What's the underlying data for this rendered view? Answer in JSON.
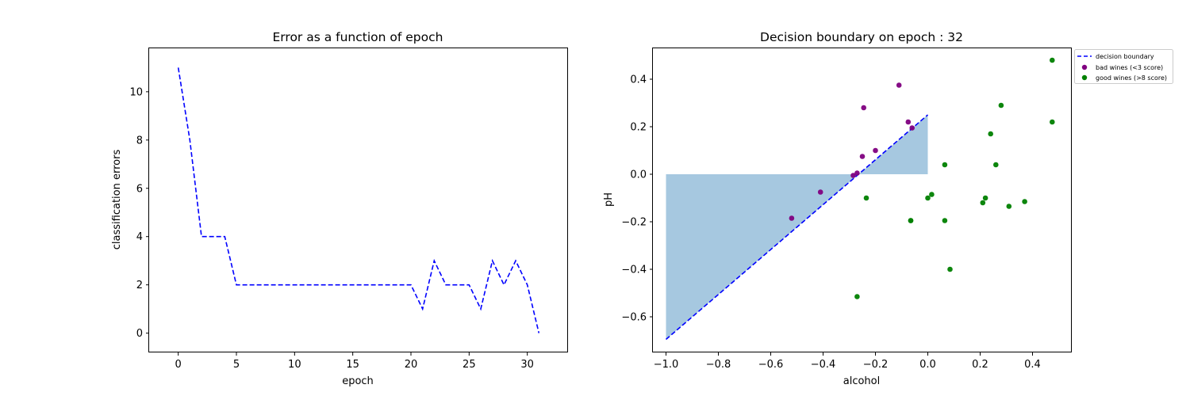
{
  "chart_data": [
    {
      "type": "line",
      "title": "Error as a function of epoch",
      "xlabel": "epoch",
      "ylabel": "classification errors",
      "xlim": [
        -2.5,
        33.5
      ],
      "ylim": [
        -0.8,
        11.8
      ],
      "xticks": [
        0,
        5,
        10,
        15,
        20,
        25,
        30
      ],
      "xtick_labels": [
        "0",
        "5",
        "10",
        "15",
        "20",
        "25",
        "30"
      ],
      "yticks": [
        0,
        2,
        4,
        6,
        8,
        10
      ],
      "ytick_labels": [
        "0",
        "2",
        "4",
        "6",
        "8",
        "10"
      ],
      "grid": false,
      "line_style": "dashed",
      "line_color": "#0000ff",
      "x": [
        0,
        1,
        2,
        3,
        4,
        5,
        6,
        7,
        8,
        9,
        10,
        11,
        12,
        13,
        14,
        15,
        16,
        17,
        18,
        19,
        20,
        21,
        22,
        23,
        24,
        25,
        26,
        27,
        28,
        29,
        30,
        31
      ],
      "y": [
        11,
        8,
        4,
        4,
        4,
        2,
        2,
        2,
        2,
        2,
        2,
        2,
        2,
        2,
        2,
        2,
        2,
        2,
        2,
        2,
        2,
        1,
        3,
        2,
        2,
        2,
        1,
        3,
        2,
        3,
        2,
        0
      ]
    },
    {
      "type": "scatter",
      "title": "Decision boundary on epoch : 32",
      "xlabel": "alcohol",
      "ylabel": "pH",
      "xlim": [
        -1.05,
        0.55
      ],
      "ylim": [
        -0.75,
        0.53
      ],
      "xticks": [
        -1.0,
        -0.8,
        -0.6,
        -0.4,
        -0.2,
        0.0,
        0.2,
        0.4
      ],
      "xtick_labels": [
        "−1.0",
        "−0.8",
        "−0.6",
        "−0.4",
        "−0.2",
        "0.0",
        "0.2",
        "0.4"
      ],
      "yticks": [
        -0.6,
        -0.4,
        -0.2,
        0.0,
        0.2,
        0.4
      ],
      "ytick_labels": [
        "−0.6",
        "−0.4",
        "−0.2",
        "0.0",
        "0.2",
        "0.4"
      ],
      "grid": false,
      "legend_position": "outside-top-right",
      "boundary": {
        "name": "decision boundary",
        "x": [
          -1.0,
          0.0
        ],
        "y": [
          -0.695,
          0.25
        ],
        "color": "#0000ff",
        "style": "dashed"
      },
      "fill_region": {
        "x": [
          -1.0,
          -0.264,
          0.0,
          0.0,
          -1.0
        ],
        "y": [
          -0.695,
          0.0,
          0.25,
          0.0,
          0.0
        ],
        "color": "#a6c8e0"
      },
      "series": [
        {
          "name": "bad wines (<3 score)",
          "color": "#800080",
          "points": [
            [
              -0.52,
              -0.185
            ],
            [
              -0.41,
              -0.075
            ],
            [
              -0.285,
              -0.005
            ],
            [
              -0.27,
              0.005
            ],
            [
              -0.25,
              0.075
            ],
            [
              -0.245,
              0.28
            ],
            [
              -0.2,
              0.1
            ],
            [
              -0.11,
              0.375
            ],
            [
              -0.075,
              0.22
            ],
            [
              -0.06,
              0.195
            ]
          ]
        },
        {
          "name": "good wines (>8 score)",
          "color": "#008000",
          "points": [
            [
              -0.27,
              -0.515
            ],
            [
              -0.235,
              -0.1
            ],
            [
              -0.065,
              -0.195
            ],
            [
              -0.065,
              -0.195
            ],
            [
              0.0,
              -0.1
            ],
            [
              0.015,
              -0.085
            ],
            [
              0.065,
              0.04
            ],
            [
              0.065,
              -0.195
            ],
            [
              0.085,
              -0.4
            ],
            [
              0.21,
              -0.12
            ],
            [
              0.22,
              -0.1
            ],
            [
              0.24,
              0.17
            ],
            [
              0.26,
              0.04
            ],
            [
              0.28,
              0.29
            ],
            [
              0.31,
              -0.135
            ],
            [
              0.37,
              -0.115
            ],
            [
              0.475,
              0.48
            ],
            [
              0.475,
              0.22
            ]
          ]
        }
      ]
    }
  ]
}
